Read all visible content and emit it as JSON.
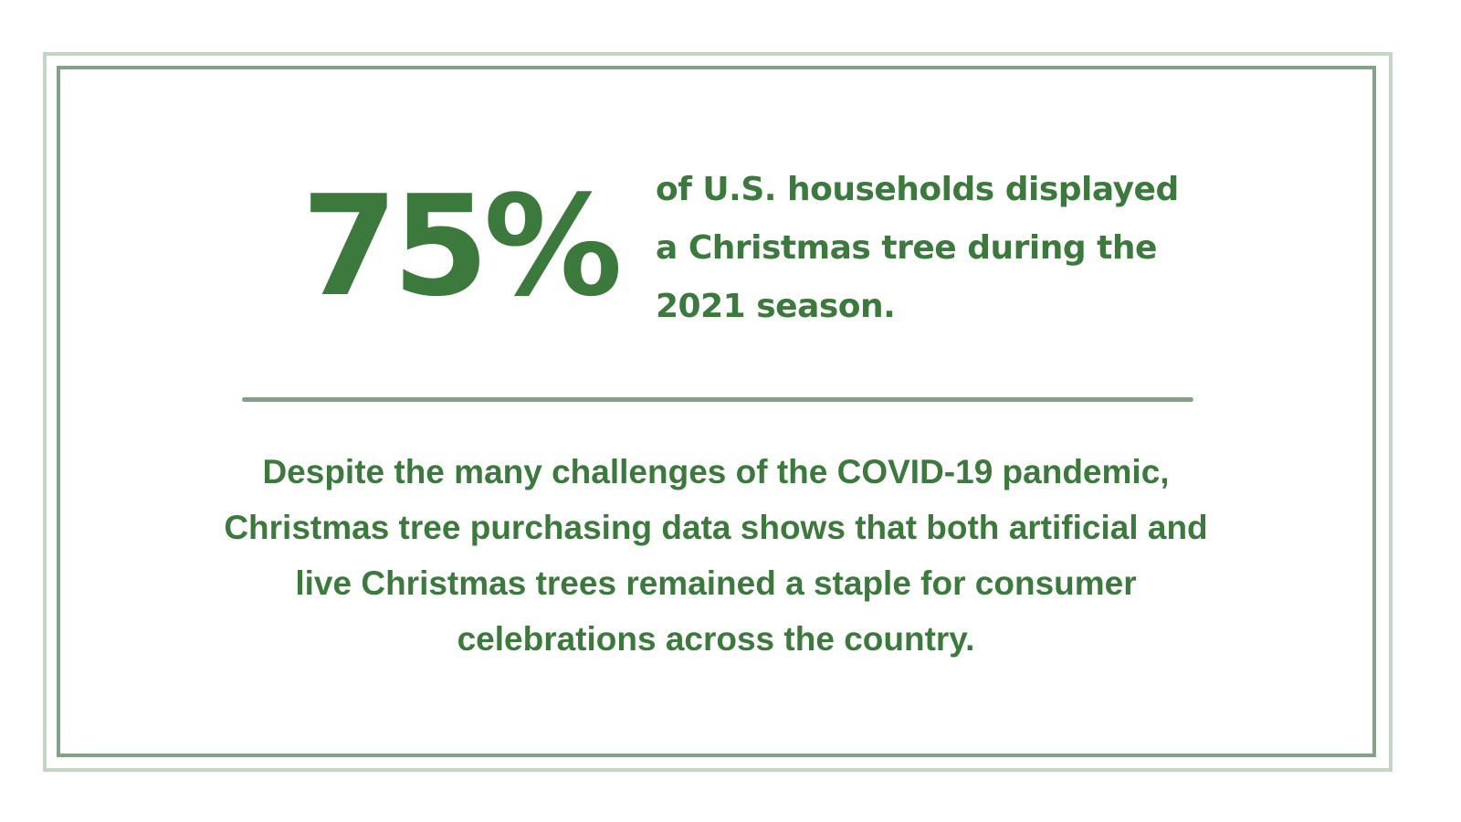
{
  "stat": {
    "value": "75%",
    "caption_lines": [
      "of U.S. households displayed",
      "a Christmas tree during the",
      "2021 season."
    ]
  },
  "body": {
    "lines": [
      "Despite the many challenges of the COVID-19 pandemic,",
      "Christmas tree purchasing data shows that both artificial and",
      "live Christmas trees remained a staple for consumer",
      "celebrations across the country."
    ]
  },
  "colors": {
    "text_green": "#3b7a3c",
    "frame_outer": "#c3d6c6",
    "frame_inner": "#7fa383",
    "background": "#ffffff"
  }
}
